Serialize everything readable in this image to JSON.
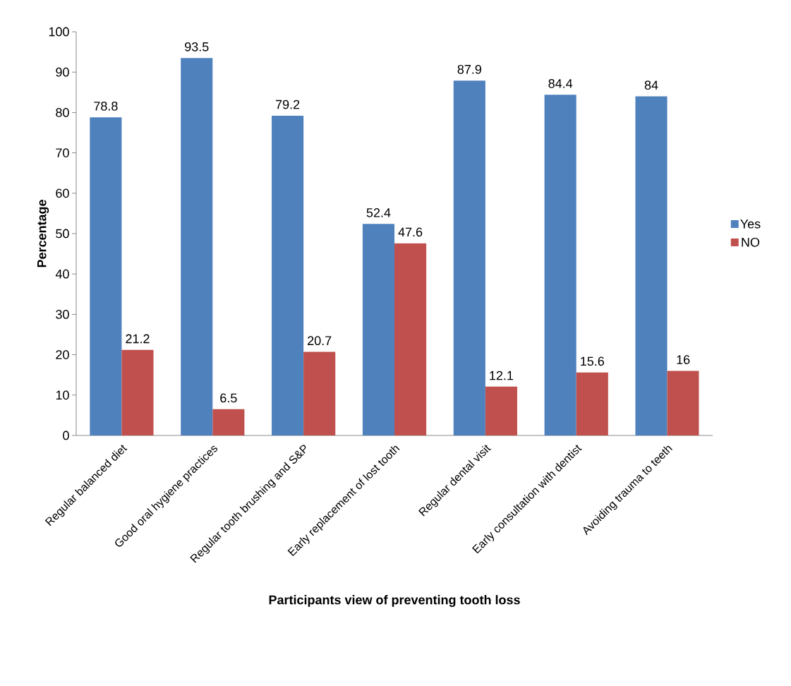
{
  "chart_data": {
    "type": "bar",
    "xlabel": "Participants view of preventing tooth loss",
    "ylabel": "Percentage",
    "categories": [
      "Regular balanced diet",
      "Good oral hygiene practices",
      "Regular tooth brushing and S&P",
      "Early replacement of lost tooth",
      "Regular dental visit",
      "Early consultation with dentist",
      "Avoiding trauma to teeth"
    ],
    "series": [
      {
        "name": "Yes",
        "color": "#4f81bd",
        "values": [
          78.8,
          93.5,
          79.2,
          52.4,
          87.9,
          84.4,
          84
        ]
      },
      {
        "name": "NO",
        "color": "#c0504d",
        "values": [
          21.2,
          6.5,
          20.7,
          47.6,
          12.1,
          15.6,
          16
        ]
      }
    ],
    "ylim": [
      0,
      100
    ],
    "yticks": [
      0,
      10,
      20,
      30,
      40,
      50,
      60,
      70,
      80,
      90,
      100
    ],
    "grid": false,
    "legend": "right",
    "data_labels": true
  }
}
